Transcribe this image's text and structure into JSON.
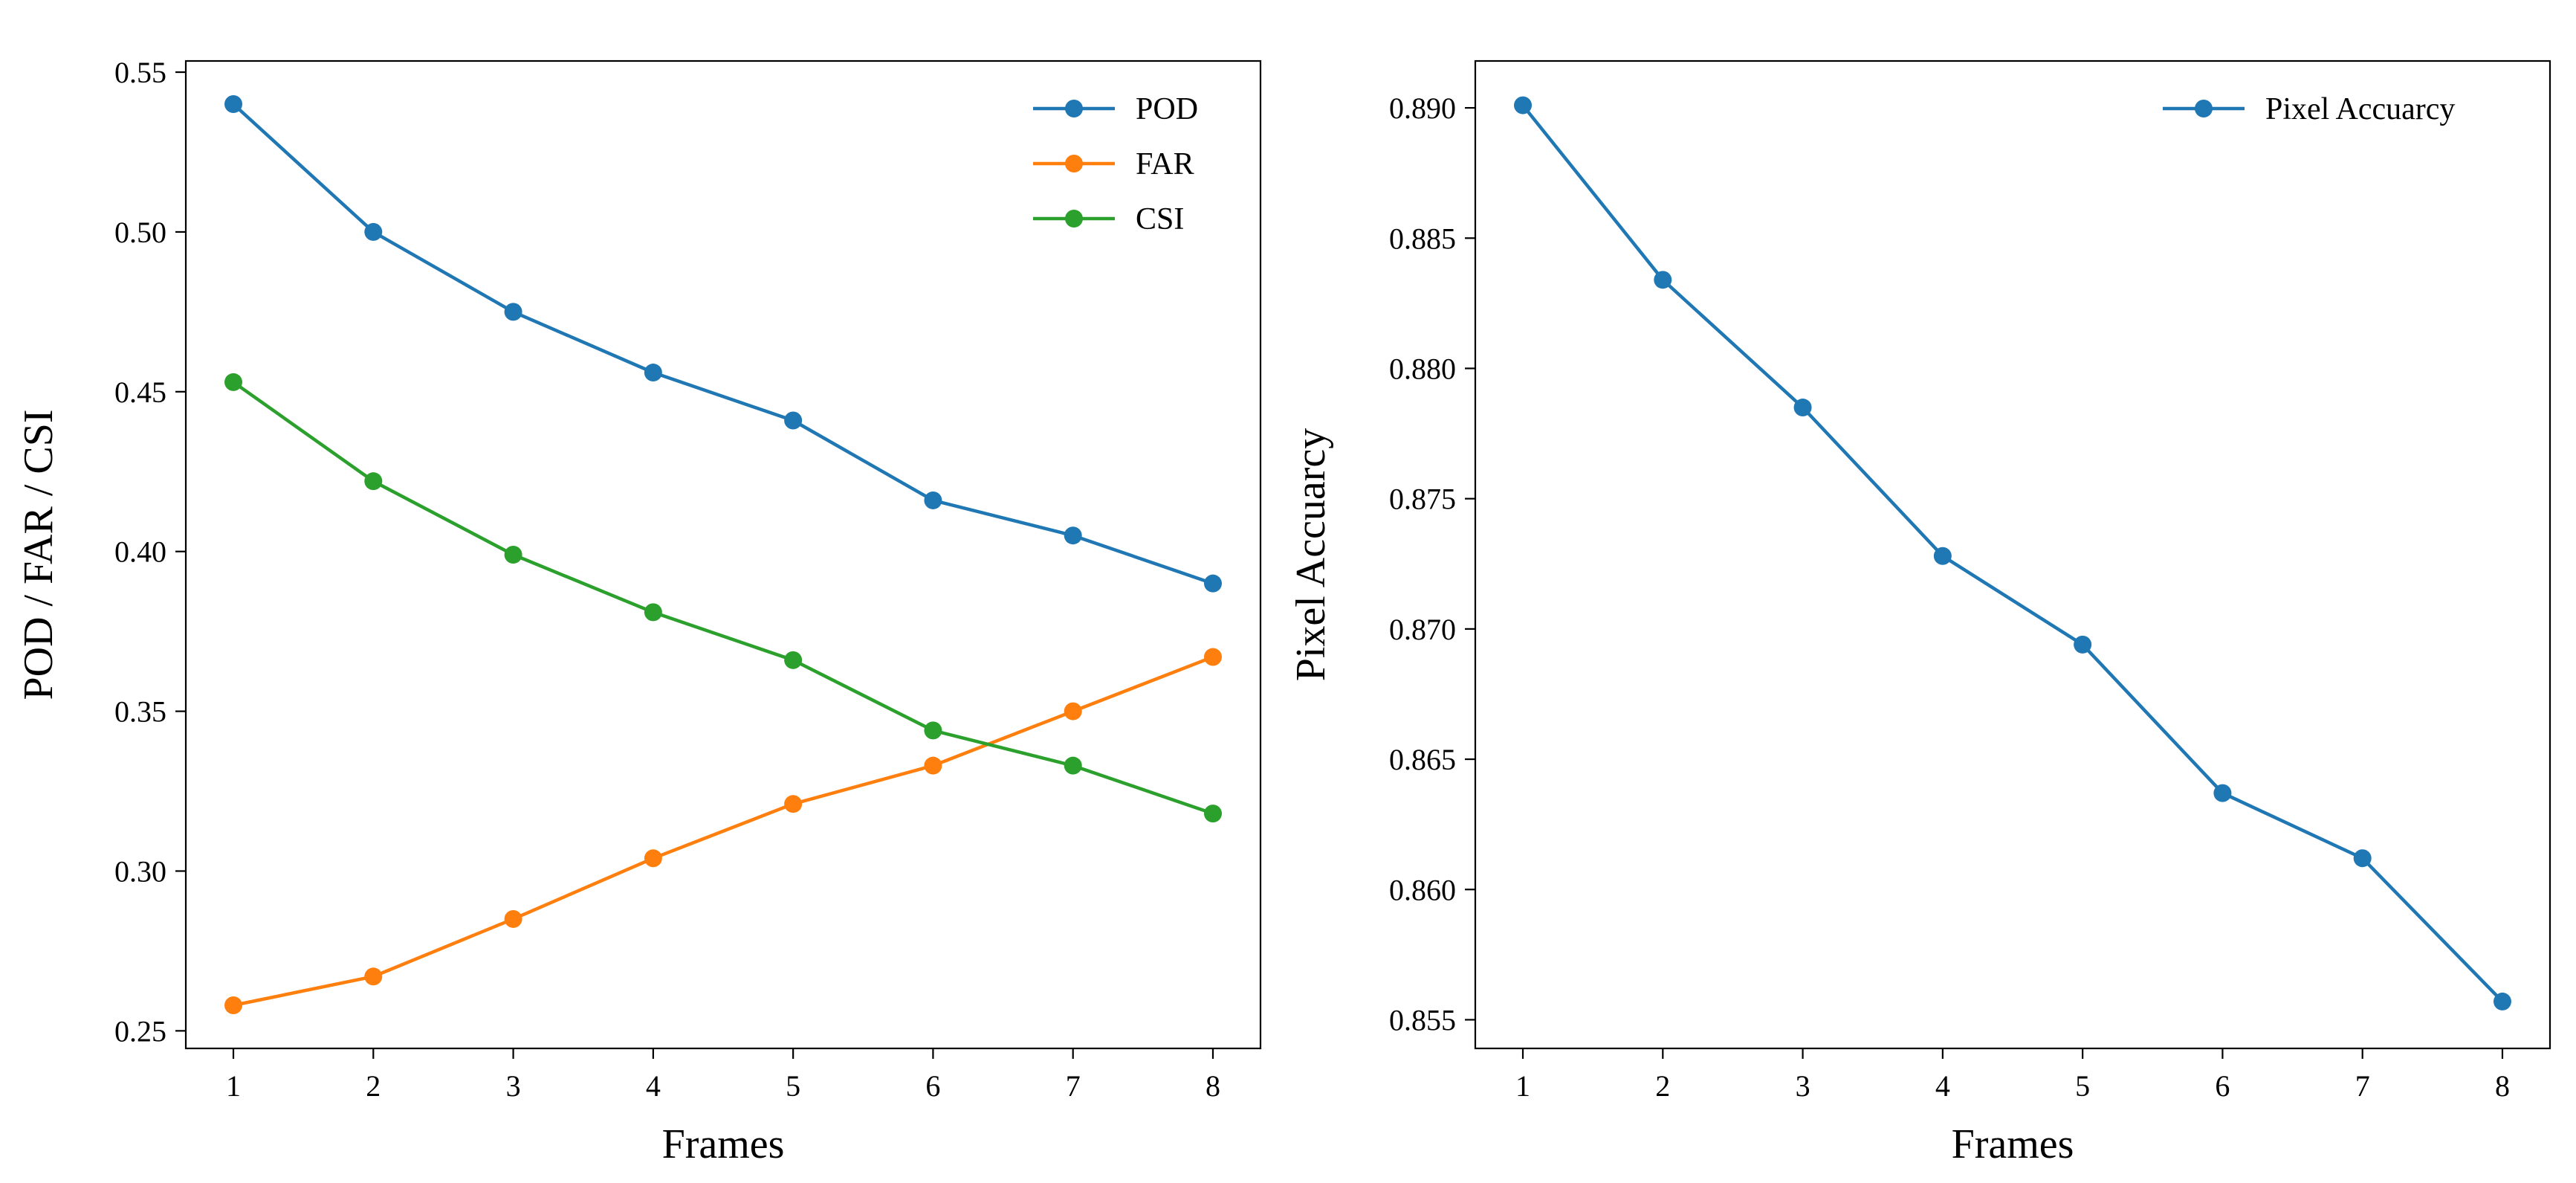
{
  "chart_data": [
    {
      "type": "line",
      "title": "",
      "xlabel": "Frames",
      "ylabel": "POD / FAR / CSI",
      "x": [
        1,
        2,
        3,
        4,
        5,
        6,
        7,
        8
      ],
      "xticks": [
        "1",
        "2",
        "3",
        "4",
        "5",
        "6",
        "7",
        "8"
      ],
      "yticks": [
        "0.25",
        "0.30",
        "0.35",
        "0.40",
        "0.45",
        "0.50",
        "0.55"
      ],
      "ytick_values": [
        0.25,
        0.3,
        0.35,
        0.4,
        0.45,
        0.5,
        0.55
      ],
      "xlim": [
        0.66,
        8.34
      ],
      "ylim": [
        0.2445,
        0.5535
      ],
      "grid": false,
      "legend_position": "top-right",
      "series": [
        {
          "name": "POD",
          "color": "#1f77b4",
          "values": [
            0.54,
            0.5,
            0.475,
            0.456,
            0.441,
            0.416,
            0.405,
            0.39
          ]
        },
        {
          "name": "FAR",
          "color": "#ff7f0e",
          "values": [
            0.258,
            0.267,
            0.285,
            0.304,
            0.321,
            0.333,
            0.35,
            0.367
          ]
        },
        {
          "name": "CSI",
          "color": "#2ca02c",
          "values": [
            0.453,
            0.422,
            0.399,
            0.381,
            0.366,
            0.344,
            0.333,
            0.318
          ]
        }
      ]
    },
    {
      "type": "line",
      "title": "",
      "xlabel": "Frames",
      "ylabel": "Pixel Accuarcy",
      "x": [
        1,
        2,
        3,
        4,
        5,
        6,
        7,
        8
      ],
      "xticks": [
        "1",
        "2",
        "3",
        "4",
        "5",
        "6",
        "7",
        "8"
      ],
      "yticks": [
        "0.855",
        "0.860",
        "0.865",
        "0.870",
        "0.875",
        "0.880",
        "0.885",
        "0.890"
      ],
      "ytick_values": [
        0.855,
        0.86,
        0.865,
        0.87,
        0.875,
        0.88,
        0.885,
        0.89
      ],
      "xlim": [
        0.66,
        8.34
      ],
      "ylim": [
        0.8539,
        0.8918
      ],
      "grid": false,
      "legend_position": "top-right",
      "series": [
        {
          "name": "Pixel Accuarcy",
          "color": "#1f77b4",
          "values": [
            0.8901,
            0.8834,
            0.8785,
            0.8728,
            0.8694,
            0.8637,
            0.8612,
            0.8557
          ]
        }
      ]
    }
  ]
}
